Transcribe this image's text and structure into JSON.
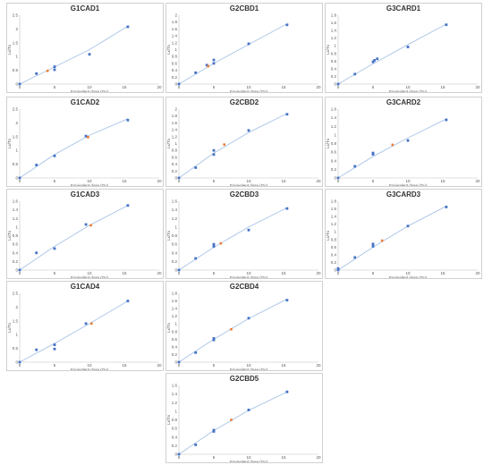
{
  "colors": {
    "fit": "#a9c4e6",
    "point": "#4472c4",
    "highlight": "#ed7d31",
    "axis": "#bfbfbf",
    "grid_border": "#d0d0d0"
  },
  "chart_data": [
    {
      "title": "G1CAD1",
      "type": "scatter",
      "xlabel": "Equivalent dose (Gy)",
      "ylabel": "Lx/Tx",
      "xlim": [
        0,
        20
      ],
      "ylim": [
        0,
        2.5
      ],
      "xticks": [
        0,
        5,
        10,
        15,
        20
      ],
      "yticks": [
        0,
        0.5,
        1,
        1.5,
        2,
        2.5
      ],
      "ytick_labels": [
        "0",
        "0.5",
        "1",
        "1.5",
        "2",
        "2.5"
      ],
      "points": [
        [
          0,
          0
        ],
        [
          2.4,
          0.38
        ],
        [
          5,
          0.52
        ],
        [
          5,
          0.63
        ],
        [
          10,
          1.08
        ],
        [
          15.5,
          2.08
        ]
      ],
      "highlight": [
        [
          4,
          0.48
        ]
      ],
      "fit": [
        [
          0,
          0
        ],
        [
          5,
          0.62
        ],
        [
          10,
          1.25
        ],
        [
          15.5,
          2.1
        ]
      ]
    },
    {
      "title": "G2CBD1",
      "type": "scatter",
      "xlabel": "Equivalent dose (Gy)",
      "ylabel": "Lx/Tx",
      "xlim": [
        0,
        20
      ],
      "ylim": [
        0,
        2
      ],
      "xticks": [
        0,
        5,
        10,
        15,
        20
      ],
      "yticks": [
        0,
        0.2,
        0.4,
        0.6,
        0.8,
        1,
        1.2,
        1.4,
        1.6,
        1.8,
        2
      ],
      "ytick_labels": [
        "0",
        "0.2",
        "0.4",
        "0.6",
        "0.8",
        "1",
        "1.2",
        "1.4",
        "1.6",
        "1.8",
        "2"
      ],
      "points": [
        [
          0,
          0
        ],
        [
          2.4,
          0.33
        ],
        [
          4,
          0.55
        ],
        [
          5,
          0.6
        ],
        [
          5,
          0.7
        ],
        [
          10,
          1.17
        ],
        [
          15.5,
          1.72
        ]
      ],
      "highlight": [
        [
          4.2,
          0.52
        ]
      ],
      "fit": [
        [
          0,
          0
        ],
        [
          5,
          0.6
        ],
        [
          10,
          1.15
        ],
        [
          15.5,
          1.75
        ]
      ]
    },
    {
      "title": "G3CARD1",
      "type": "scatter",
      "xlabel": "Equivalent dose (Gy)",
      "ylabel": "Lx/Tx",
      "xlim": [
        0,
        20
      ],
      "ylim": [
        0,
        1.8
      ],
      "xticks": [
        0,
        5,
        10,
        15,
        20
      ],
      "yticks": [
        0,
        0.2,
        0.4,
        0.6,
        0.8,
        1,
        1.2,
        1.4,
        1.6,
        1.8
      ],
      "ytick_labels": [
        "0",
        "0.2",
        "0.4",
        "0.6",
        "0.8",
        "1",
        "1.2",
        "1.4",
        "1.6",
        "1.8"
      ],
      "points": [
        [
          0,
          0
        ],
        [
          2.4,
          0.26
        ],
        [
          5,
          0.58
        ],
        [
          5.2,
          0.62
        ],
        [
          5.6,
          0.66
        ],
        [
          10,
          0.97
        ],
        [
          15.5,
          1.55
        ]
      ],
      "highlight": [],
      "fit": [
        [
          0,
          0
        ],
        [
          5,
          0.53
        ],
        [
          10,
          1.03
        ],
        [
          15.5,
          1.57
        ]
      ]
    },
    {
      "title": "G1CAD2",
      "type": "scatter",
      "xlabel": "Equivalent dose (Gy)",
      "ylabel": "Lx/Tx",
      "xlim": [
        0,
        20
      ],
      "ylim": [
        0,
        2.5
      ],
      "xticks": [
        0,
        5,
        10,
        15,
        20
      ],
      "yticks": [
        0,
        0.5,
        1,
        1.5,
        2,
        2.5
      ],
      "ytick_labels": [
        "0",
        "0.5",
        "1",
        "1.5",
        "2",
        "2.5"
      ],
      "points": [
        [
          0,
          0
        ],
        [
          2.4,
          0.47
        ],
        [
          5,
          0.8
        ],
        [
          9.5,
          1.52
        ],
        [
          15.5,
          2.1
        ]
      ],
      "highlight": [
        [
          9.8,
          1.48
        ]
      ],
      "fit": [
        [
          0,
          0
        ],
        [
          5,
          0.85
        ],
        [
          10,
          1.55
        ],
        [
          15.5,
          2.15
        ]
      ]
    },
    {
      "title": "G2CBD2",
      "type": "scatter",
      "xlabel": "Equivalent dose (Gy)",
      "ylabel": "Lx/Tx",
      "xlim": [
        0,
        20
      ],
      "ylim": [
        0,
        2
      ],
      "xticks": [
        0,
        5,
        10,
        15,
        20
      ],
      "yticks": [
        0,
        0.2,
        0.4,
        0.6,
        0.8,
        1,
        1.2,
        1.4,
        1.6,
        1.8,
        2
      ],
      "ytick_labels": [
        "0",
        "0.2",
        "0.4",
        "0.6",
        "0.8",
        "1",
        "1.2",
        "1.4",
        "1.6",
        "1.8",
        "2"
      ],
      "points": [
        [
          0,
          0
        ],
        [
          2.4,
          0.3
        ],
        [
          5,
          0.68
        ],
        [
          5,
          0.8
        ],
        [
          10,
          1.38
        ],
        [
          15.5,
          1.85
        ]
      ],
      "highlight": [
        [
          6.5,
          0.97
        ]
      ],
      "fit": [
        [
          0,
          0
        ],
        [
          5,
          0.72
        ],
        [
          10,
          1.32
        ],
        [
          15.5,
          1.87
        ]
      ]
    },
    {
      "title": "G3CARD2",
      "type": "scatter",
      "xlabel": "Equivalent dose (Gy)",
      "ylabel": "Lx/Tx",
      "xlim": [
        0,
        20
      ],
      "ylim": [
        0,
        1.6
      ],
      "xticks": [
        0,
        5,
        10,
        15,
        20
      ],
      "yticks": [
        0,
        0.2,
        0.4,
        0.6,
        0.8,
        1,
        1.2,
        1.4,
        1.6
      ],
      "ytick_labels": [
        "0",
        "0.2",
        "0.4",
        "0.6",
        "0.8",
        "1",
        "1.2",
        "1.4",
        "1.6"
      ],
      "points": [
        [
          0,
          0
        ],
        [
          2.4,
          0.27
        ],
        [
          5,
          0.55
        ],
        [
          5,
          0.58
        ],
        [
          10,
          0.87
        ],
        [
          15.5,
          1.35
        ]
      ],
      "highlight": [
        [
          7.8,
          0.77
        ]
      ],
      "fit": [
        [
          0,
          0
        ],
        [
          5,
          0.5
        ],
        [
          10,
          0.93
        ],
        [
          15.5,
          1.37
        ]
      ]
    },
    {
      "title": "G1CAD3",
      "type": "scatter",
      "xlabel": "Equivalent dose (Gy)",
      "ylabel": "Lx/Tx",
      "xlim": [
        0,
        20
      ],
      "ylim": [
        0,
        1.6
      ],
      "xticks": [
        0,
        5,
        10,
        15,
        20
      ],
      "yticks": [
        0,
        0.2,
        0.4,
        0.6,
        0.8,
        1,
        1.2,
        1.4,
        1.6
      ],
      "ytick_labels": [
        "0",
        "0.2",
        "0.4",
        "0.6",
        "0.8",
        "1",
        "1.2",
        "1.4",
        "1.6"
      ],
      "points": [
        [
          0,
          0
        ],
        [
          2.4,
          0.4
        ],
        [
          5,
          0.5
        ],
        [
          9.5,
          1.06
        ],
        [
          15.5,
          1.5
        ]
      ],
      "highlight": [
        [
          10.2,
          1.04
        ]
      ],
      "fit": [
        [
          0,
          0
        ],
        [
          5,
          0.55
        ],
        [
          10,
          1.04
        ],
        [
          15.5,
          1.5
        ]
      ]
    },
    {
      "title": "G2CBD3",
      "type": "scatter",
      "xlabel": "Equivalent dose (Gy)",
      "ylabel": "Lx/Tx",
      "xlim": [
        0,
        20
      ],
      "ylim": [
        0,
        1.6
      ],
      "xticks": [
        0,
        5,
        10,
        15,
        20
      ],
      "yticks": [
        0,
        0.2,
        0.4,
        0.6,
        0.8,
        1,
        1.2,
        1.4,
        1.6
      ],
      "ytick_labels": [
        "0",
        "0.2",
        "0.4",
        "0.6",
        "0.8",
        "1",
        "1.2",
        "1.4",
        "1.6"
      ],
      "points": [
        [
          0,
          0
        ],
        [
          2.4,
          0.27
        ],
        [
          5,
          0.55
        ],
        [
          5,
          0.6
        ],
        [
          10,
          0.93
        ],
        [
          15.5,
          1.43
        ]
      ],
      "highlight": [
        [
          6,
          0.62
        ]
      ],
      "fit": [
        [
          0,
          0
        ],
        [
          5,
          0.53
        ],
        [
          10,
          1.0
        ],
        [
          15.5,
          1.45
        ]
      ]
    },
    {
      "title": "G3CARD3",
      "type": "scatter",
      "xlabel": "Equivalent dose (Gy)",
      "ylabel": "Lx/Tx",
      "xlim": [
        0,
        20
      ],
      "ylim": [
        0,
        1.8
      ],
      "xticks": [
        0,
        5,
        10,
        15,
        20
      ],
      "yticks": [
        0,
        0.2,
        0.4,
        0.6,
        0.8,
        1,
        1.2,
        1.4,
        1.6,
        1.8
      ],
      "ytick_labels": [
        "0",
        "0.2",
        "0.4",
        "0.6",
        "0.8",
        "1",
        "1.2",
        "1.4",
        "1.6",
        "1.8"
      ],
      "points": [
        [
          0,
          0
        ],
        [
          0,
          0.04
        ],
        [
          2.4,
          0.33
        ],
        [
          5,
          0.62
        ],
        [
          5,
          0.68
        ],
        [
          10,
          1.15
        ],
        [
          15.5,
          1.65
        ]
      ],
      "highlight": [
        [
          6.3,
          0.77
        ]
      ],
      "fit": [
        [
          0,
          0
        ],
        [
          5,
          0.6
        ],
        [
          10,
          1.15
        ],
        [
          15.5,
          1.67
        ]
      ]
    },
    {
      "title": "G1CAD4",
      "type": "scatter",
      "xlabel": "Equivalent dose (Gy)",
      "ylabel": "Lx/Tx",
      "xlim": [
        0,
        20
      ],
      "ylim": [
        0,
        2.5
      ],
      "xticks": [
        0,
        5,
        10,
        15,
        20
      ],
      "yticks": [
        0,
        0.5,
        1,
        1.5,
        2,
        2.5
      ],
      "ytick_labels": [
        "0",
        "0.5",
        "1",
        "1.5",
        "2",
        "2.5"
      ],
      "points": [
        [
          0,
          0
        ],
        [
          2.4,
          0.45
        ],
        [
          5,
          0.48
        ],
        [
          5,
          0.63
        ],
        [
          9.5,
          1.4
        ],
        [
          15.5,
          2.22
        ]
      ],
      "highlight": [
        [
          10.3,
          1.4
        ]
      ],
      "fit": [
        [
          0,
          0
        ],
        [
          5,
          0.68
        ],
        [
          10,
          1.4
        ],
        [
          15.5,
          2.22
        ]
      ]
    },
    {
      "title": "G2CBD4",
      "type": "scatter",
      "xlabel": "Equivalent dose (Gy)",
      "ylabel": "Lx/Tx",
      "xlim": [
        0,
        20
      ],
      "ylim": [
        0,
        1.8
      ],
      "xticks": [
        0,
        5,
        10,
        15,
        20
      ],
      "yticks": [
        0,
        0.2,
        0.4,
        0.6,
        0.8,
        1,
        1.2,
        1.4,
        1.6,
        1.8
      ],
      "ytick_labels": [
        "0",
        "0.2",
        "0.4",
        "0.6",
        "0.8",
        "1",
        "1.2",
        "1.4",
        "1.6",
        "1.8"
      ],
      "points": [
        [
          0,
          0
        ],
        [
          2.4,
          0.25
        ],
        [
          5,
          0.58
        ],
        [
          5,
          0.62
        ],
        [
          10,
          1.15
        ],
        [
          15.5,
          1.62
        ]
      ],
      "highlight": [
        [
          7.5,
          0.86
        ]
      ],
      "fit": [
        [
          0,
          0
        ],
        [
          5,
          0.6
        ],
        [
          10,
          1.14
        ],
        [
          15.5,
          1.65
        ]
      ]
    },
    {
      "title": "G2CBD5",
      "type": "scatter",
      "xlabel": "Equivalent dose (Gy)",
      "ylabel": "Lx/Tx",
      "xlim": [
        0,
        20
      ],
      "ylim": [
        0,
        1.6
      ],
      "xticks": [
        0,
        5,
        10,
        15,
        20
      ],
      "yticks": [
        0,
        0.2,
        0.4,
        0.6,
        0.8,
        1,
        1.2,
        1.4,
        1.6
      ],
      "ytick_labels": [
        "0",
        "0.2",
        "0.4",
        "0.6",
        "0.8",
        "1",
        "1.2",
        "1.4",
        "1.6"
      ],
      "points": [
        [
          0,
          0
        ],
        [
          2.4,
          0.22
        ],
        [
          5,
          0.53
        ],
        [
          5,
          0.56
        ],
        [
          10,
          1.03
        ],
        [
          15.5,
          1.45
        ]
      ],
      "highlight": [
        [
          7.5,
          0.8
        ]
      ],
      "fit": [
        [
          0,
          0
        ],
        [
          5,
          0.55
        ],
        [
          10,
          1.02
        ],
        [
          15.5,
          1.45
        ]
      ]
    }
  ]
}
